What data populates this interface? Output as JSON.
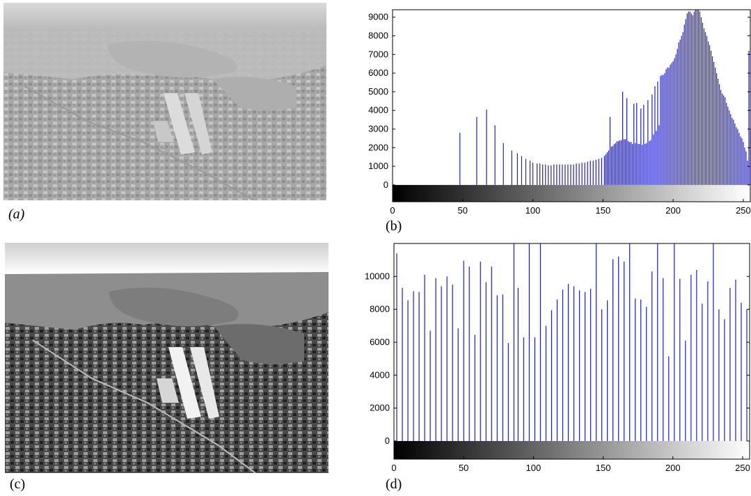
{
  "panels": {
    "a": {
      "label": "(a)",
      "photo_name": "aerial-photo-low-contrast"
    },
    "b": {
      "label": "(b)"
    },
    "c": {
      "label": "(c)",
      "photo_name": "aerial-photo-equalized"
    },
    "d": {
      "label": "(d)"
    }
  },
  "colors": {
    "bar": "#1f1fcc",
    "axis": "#000000",
    "frame": "#000000"
  },
  "chart_data": [
    {
      "id": "histogram-original",
      "type": "bar",
      "title": "",
      "xlabel": "",
      "ylabel": "",
      "xlim": [
        0,
        255
      ],
      "ylim": [
        -900,
        9400
      ],
      "xticks": [
        0,
        50,
        100,
        150,
        200,
        250
      ],
      "yticks": [
        0,
        1000,
        2000,
        3000,
        4000,
        5000,
        6000,
        7000,
        8000,
        9000
      ],
      "grid": false,
      "colorbar": "grayscale gradient 0-255 along x axis",
      "x": [
        48,
        60,
        67,
        73,
        79,
        85,
        89,
        92,
        95,
        98,
        100,
        103,
        105,
        107,
        109,
        111,
        113,
        115,
        117,
        119,
        121,
        123,
        125,
        127,
        129,
        131,
        133,
        135,
        137,
        139,
        141,
        143,
        145,
        147,
        149,
        151,
        152,
        153,
        154,
        155,
        156,
        157,
        158,
        159,
        160,
        161,
        162,
        163,
        164,
        165,
        166,
        167,
        168,
        169,
        170,
        171,
        172,
        173,
        174,
        175,
        176,
        177,
        178,
        179,
        180,
        181,
        182,
        183,
        184,
        185,
        186,
        187,
        188,
        189,
        190,
        191,
        192,
        193,
        194,
        195,
        196,
        197,
        198,
        199,
        200,
        201,
        202,
        203,
        204,
        205,
        206,
        207,
        208,
        209,
        210,
        211,
        212,
        213,
        214,
        215,
        216,
        217,
        218,
        219,
        220,
        221,
        222,
        223,
        224,
        225,
        226,
        227,
        228,
        229,
        230,
        231,
        232,
        233,
        234,
        235,
        236,
        237,
        238,
        239,
        240,
        241,
        242,
        243,
        244,
        245,
        246,
        247,
        248,
        249,
        250,
        251,
        252,
        253,
        254,
        255
      ],
      "values": [
        2800,
        3650,
        4050,
        3200,
        2250,
        1850,
        1700,
        1550,
        1400,
        1300,
        1200,
        1150,
        1150,
        1100,
        1100,
        1050,
        1050,
        1100,
        1100,
        1100,
        1100,
        1100,
        1100,
        1100,
        1100,
        1150,
        1150,
        1200,
        1200,
        1250,
        1300,
        1300,
        1350,
        1400,
        1450,
        1550,
        1650,
        1750,
        1850,
        3650,
        2050,
        2100,
        2200,
        2250,
        2350,
        2350,
        2400,
        2400,
        5000,
        2450,
        2450,
        4650,
        2350,
        2300,
        2300,
        2200,
        4350,
        2250,
        4400,
        2200,
        2200,
        4100,
        2150,
        4300,
        2200,
        2250,
        4550,
        2350,
        2400,
        4850,
        2700,
        5300,
        2900,
        5550,
        3200,
        5850,
        5900,
        5900,
        6000,
        6200,
        6300,
        6300,
        6450,
        6550,
        6650,
        6800,
        7000,
        7300,
        7650,
        7800,
        8000,
        8200,
        8600,
        8900,
        9200,
        9300,
        9300,
        9200,
        9100,
        9300,
        9400,
        9400,
        9400,
        9300,
        9000,
        8700,
        8400,
        8200,
        8000,
        7700,
        7500,
        7200,
        6900,
        6600,
        6300,
        6000,
        5700,
        5400,
        5100,
        4900,
        4800,
        4700,
        4400,
        4200,
        4000,
        3800,
        3600,
        3500,
        3300,
        3100,
        3000,
        2800,
        2600,
        2500,
        2300,
        2000,
        1800,
        1300,
        7200,
        3000
      ]
    },
    {
      "id": "histogram-equalized",
      "type": "bar",
      "title": "",
      "xlabel": "",
      "ylabel": "",
      "xlim": [
        0,
        255
      ],
      "ylim": [
        -1100,
        12000
      ],
      "xticks": [
        0,
        50,
        100,
        150,
        200,
        250
      ],
      "yticks": [
        0,
        2000,
        4000,
        6000,
        8000,
        10000
      ],
      "grid": false,
      "colorbar": "grayscale gradient 0-255 along x axis",
      "x": [
        2,
        6,
        10,
        14,
        18,
        22,
        26,
        30,
        34,
        38,
        42,
        46,
        50,
        54,
        58,
        62,
        66,
        70,
        74,
        78,
        82,
        86,
        89,
        93,
        97,
        101,
        105,
        109,
        113,
        117,
        121,
        125,
        129,
        133,
        137,
        141,
        145,
        149,
        153,
        157,
        161,
        165,
        169,
        173,
        177,
        181,
        185,
        189,
        193,
        197,
        201,
        205,
        209,
        213,
        217,
        221,
        225,
        229,
        233,
        237,
        241,
        245,
        249,
        253
      ],
      "values": [
        11400,
        9300,
        8550,
        9100,
        9050,
        10100,
        6700,
        9900,
        9400,
        10000,
        9500,
        6850,
        10950,
        10600,
        6450,
        10900,
        9650,
        10600,
        8850,
        8900,
        5950,
        12000,
        9300,
        6300,
        12000,
        6300,
        12000,
        7000,
        7950,
        8600,
        9200,
        9550,
        9400,
        9150,
        9050,
        9250,
        12000,
        8000,
        8550,
        11050,
        11200,
        10900,
        12000,
        8650,
        8600,
        8150,
        10300,
        12000,
        9900,
        5150,
        12000,
        9850,
        6100,
        10100,
        10400,
        8350,
        9700,
        12000,
        8000,
        7400,
        9300,
        9800,
        8400,
        8000
      ]
    }
  ]
}
